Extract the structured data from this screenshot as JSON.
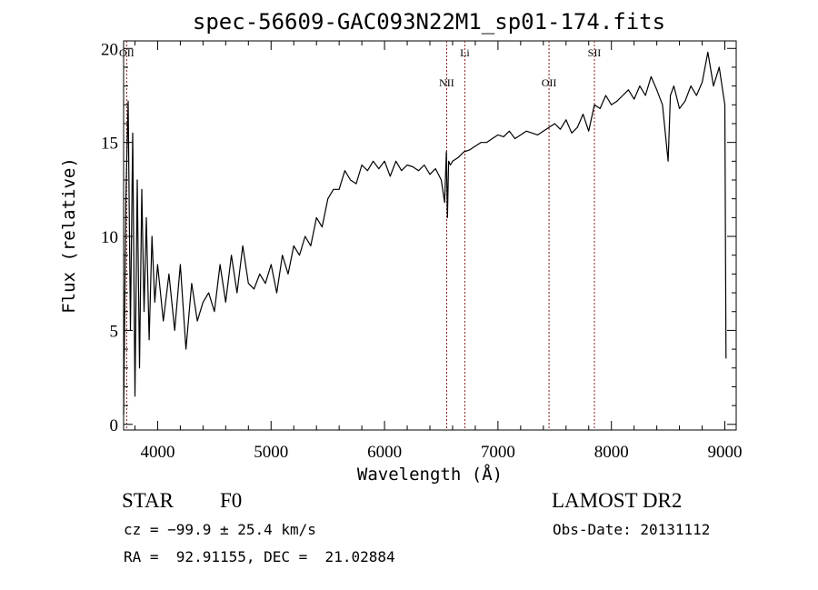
{
  "chart_data": {
    "type": "line",
    "title": "spec-56609-GAC093N22M1_sp01-174.fits",
    "xlabel": "Wavelength (Å)",
    "ylabel": "Flux (relative)",
    "xlim": [
      3700,
      9100
    ],
    "ylim": [
      -0.3,
      20.4
    ],
    "x_ticks": [
      4000,
      5000,
      6000,
      7000,
      8000,
      9000
    ],
    "y_ticks": [
      0,
      5,
      10,
      15,
      20
    ],
    "grid": false,
    "line_color": "#000000",
    "marker_color": "#8b1a1a",
    "emission_lines": [
      {
        "label": "OII",
        "x": 3727
      },
      {
        "label": "NII",
        "x": 6548
      },
      {
        "label": "Li",
        "x": 6708
      },
      {
        "label": "OII",
        "x": 7450
      },
      {
        "label": "SII",
        "x": 7850
      }
    ],
    "series": [
      {
        "x": [
          3700,
          3720,
          3740,
          3760,
          3780,
          3800,
          3820,
          3840,
          3860,
          3880,
          3900,
          3925,
          3950,
          3975,
          4000,
          4050,
          4100,
          4150,
          4200,
          4250,
          4300,
          4350,
          4400,
          4450,
          4500,
          4550,
          4600,
          4650,
          4700,
          4750,
          4800,
          4850,
          4900,
          4950,
          5000,
          5050,
          5100,
          5150,
          5200,
          5250,
          5300,
          5350,
          5400,
          5450,
          5500,
          5550,
          5600,
          5650,
          5700,
          5750,
          5800,
          5850,
          5900,
          5950,
          6000,
          6050,
          6100,
          6150,
          6200,
          6250,
          6300,
          6350,
          6400,
          6450,
          6500,
          6530,
          6545,
          6555,
          6565,
          6580,
          6600,
          6650,
          6700,
          6750,
          6800,
          6850,
          6900,
          6950,
          7000,
          7050,
          7100,
          7150,
          7200,
          7250,
          7300,
          7350,
          7400,
          7450,
          7500,
          7550,
          7600,
          7650,
          7700,
          7750,
          7800,
          7850,
          7900,
          7950,
          8000,
          8050,
          8100,
          8150,
          8200,
          8250,
          8300,
          8350,
          8400,
          8450,
          8500,
          8520,
          8550,
          8600,
          8650,
          8700,
          8750,
          8800,
          8850,
          8900,
          8950,
          9000,
          9010
        ],
        "y": [
          0.5,
          12.0,
          17.2,
          5.0,
          15.5,
          1.5,
          13.0,
          3.0,
          12.5,
          6.0,
          11.0,
          4.5,
          10.0,
          6.5,
          8.5,
          5.5,
          8.0,
          5.0,
          8.5,
          4.0,
          7.5,
          5.5,
          6.5,
          7.0,
          6.0,
          8.5,
          6.5,
          9.0,
          7.0,
          9.5,
          7.5,
          7.2,
          8.0,
          7.5,
          8.5,
          7.0,
          9.0,
          8.0,
          9.5,
          9.0,
          10.0,
          9.5,
          11.0,
          10.5,
          12.0,
          12.5,
          12.5,
          13.5,
          13.0,
          12.8,
          13.8,
          13.5,
          14.0,
          13.6,
          14.0,
          13.2,
          14.0,
          13.5,
          13.8,
          13.7,
          13.5,
          13.8,
          13.3,
          13.6,
          13.0,
          11.8,
          14.5,
          11.0,
          14.0,
          13.8,
          14.0,
          14.2,
          14.5,
          14.6,
          14.8,
          15.0,
          15.0,
          15.2,
          15.4,
          15.3,
          15.6,
          15.2,
          15.4,
          15.6,
          15.5,
          15.4,
          15.6,
          15.8,
          16.0,
          15.7,
          16.2,
          15.5,
          15.8,
          16.5,
          15.6,
          17.0,
          16.8,
          17.5,
          17.0,
          17.2,
          17.5,
          17.8,
          17.3,
          18.0,
          17.5,
          18.5,
          17.8,
          17.0,
          14.0,
          17.5,
          18.0,
          16.8,
          17.2,
          18.0,
          17.5,
          18.2,
          19.8,
          18.0,
          19.0,
          17.0,
          3.5
        ]
      }
    ]
  },
  "info": {
    "object_class": "STAR",
    "spectral_type": "F0",
    "survey": "LAMOST DR2",
    "cz": "cz = −99.9 ± 25.4 km/s",
    "obs_date": "Obs-Date: 20131112",
    "coords": "RA =  92.91155, DEC =  21.02884"
  }
}
